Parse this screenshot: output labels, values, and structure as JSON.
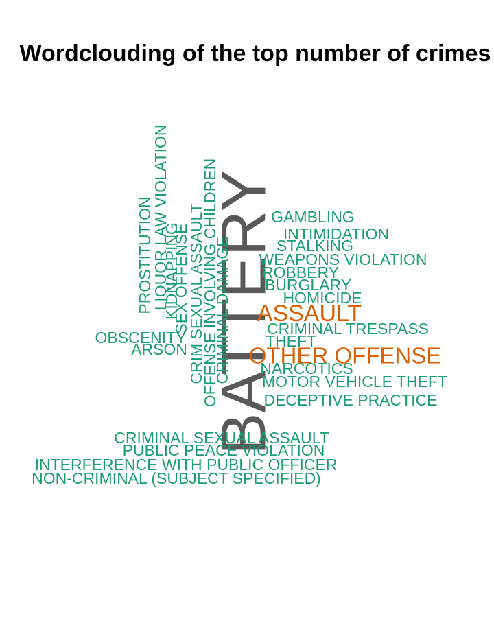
{
  "chart_data": {
    "type": "wordcloud",
    "title": "Wordclouding of the top number of crimes",
    "colors": {
      "top": "#595959",
      "high": "#d95f02",
      "regular": "#1b9e77"
    },
    "words": [
      {
        "text": "BATTERY",
        "tier": "top"
      },
      {
        "text": "ASSAULT",
        "tier": "high"
      },
      {
        "text": "OTHER OFFENSE",
        "tier": "high"
      },
      {
        "text": "GAMBLING",
        "tier": "regular"
      },
      {
        "text": "INTIMIDATION",
        "tier": "regular"
      },
      {
        "text": "STALKING",
        "tier": "regular"
      },
      {
        "text": "WEAPONS VIOLATION",
        "tier": "regular"
      },
      {
        "text": "ROBBERY",
        "tier": "regular"
      },
      {
        "text": "BURGLARY",
        "tier": "regular"
      },
      {
        "text": "HOMICIDE",
        "tier": "regular"
      },
      {
        "text": "CRIMINAL TRESPASS",
        "tier": "regular"
      },
      {
        "text": "THEFT",
        "tier": "regular"
      },
      {
        "text": "NARCOTICS",
        "tier": "regular"
      },
      {
        "text": "MOTOR VEHICLE THEFT",
        "tier": "regular"
      },
      {
        "text": "DECEPTIVE PRACTICE",
        "tier": "regular"
      },
      {
        "text": "OBSCENITY",
        "tier": "regular"
      },
      {
        "text": "ARSON",
        "tier": "regular"
      },
      {
        "text": "CRIMINAL SEXUAL ASSAULT",
        "tier": "regular"
      },
      {
        "text": "PUBLIC PEACE VIOLATION",
        "tier": "regular"
      },
      {
        "text": "INTERFERENCE WITH PUBLIC OFFICER",
        "tier": "regular"
      },
      {
        "text": "NON-CRIMINAL (SUBJECT SPECIFIED)",
        "tier": "regular"
      },
      {
        "text": "PROSTITUTION",
        "tier": "regular"
      },
      {
        "text": "LIQUOR LAW VIOLATION",
        "tier": "regular"
      },
      {
        "text": "KIDNAPPING",
        "tier": "regular"
      },
      {
        "text": "SEX OFFENSE",
        "tier": "regular"
      },
      {
        "text": "CRIM SEXUAL ASSAULT",
        "tier": "regular"
      },
      {
        "text": "OFFENSE INVOLVING CHILDREN",
        "tier": "regular"
      },
      {
        "text": "CRIMINAL DAMAGE",
        "tier": "regular"
      }
    ]
  }
}
